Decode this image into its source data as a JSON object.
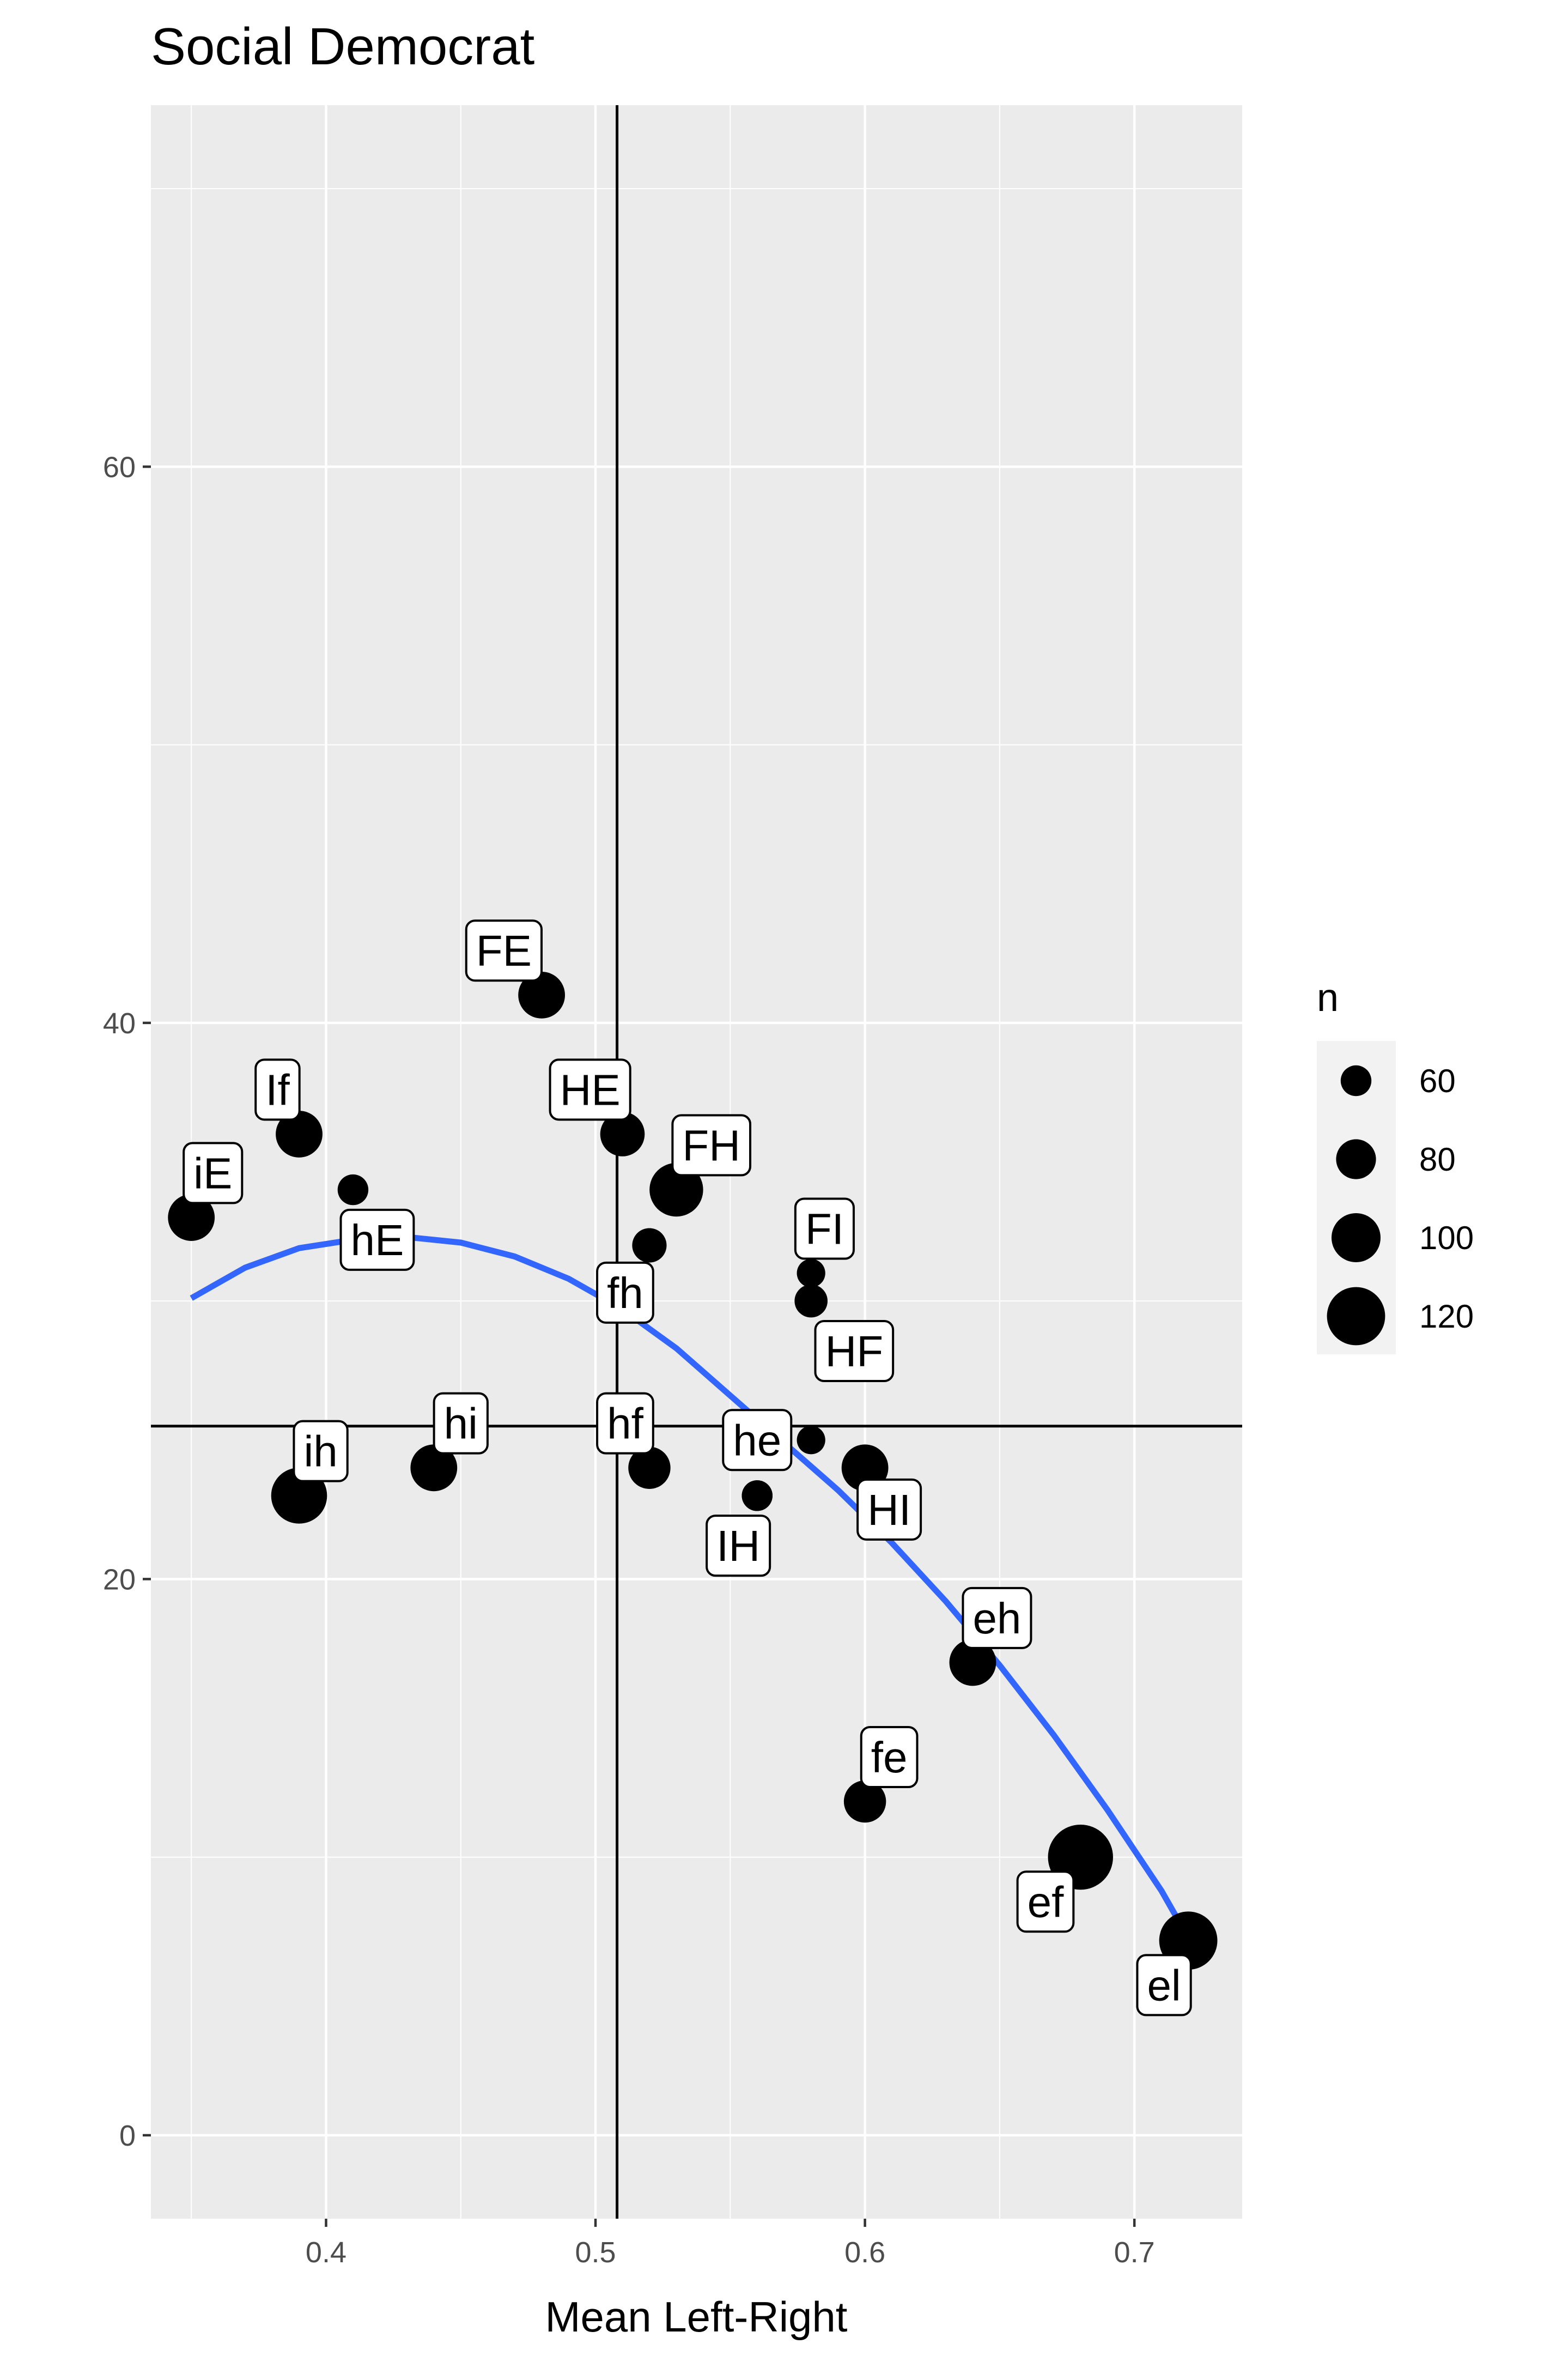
{
  "chart_data": {
    "type": "scatter",
    "title": "Social Democrat",
    "xlabel": "Mean Left-Right",
    "ylabel": "",
    "xlim": [
      0.335,
      0.74
    ],
    "ylim": [
      -3,
      73
    ],
    "x_ticks": [
      0.4,
      0.5,
      0.6,
      0.7
    ],
    "x_tick_labels": [
      "0.4",
      "0.5",
      "0.6",
      "0.7"
    ],
    "y_ticks": [
      0,
      20,
      40,
      60
    ],
    "y_tick_labels": [
      "0",
      "20",
      "40",
      "60"
    ],
    "grid": true,
    "reference_lines": {
      "vline_x": 0.508,
      "hline_y": 25.5
    },
    "points": [
      {
        "label": "FE",
        "x": 0.48,
        "y": 41,
        "n": 95,
        "label_x": 0.466,
        "label_y": 42.6
      },
      {
        "label": "If",
        "x": 0.39,
        "y": 36,
        "n": 95,
        "label_x": 0.382,
        "label_y": 37.6
      },
      {
        "label": "HE",
        "x": 0.51,
        "y": 36,
        "n": 90,
        "label_x": 0.498,
        "label_y": 37.6
      },
      {
        "label": "iE",
        "x": 0.35,
        "y": 33,
        "n": 95,
        "label_x": 0.358,
        "label_y": 34.6
      },
      {
        "label": "hE",
        "x": 0.41,
        "y": 34,
        "n": 60,
        "label_x": 0.419,
        "label_y": 32.2
      },
      {
        "label": "FH",
        "x": 0.53,
        "y": 34,
        "n": 110,
        "label_x": 0.543,
        "label_y": 35.6
      },
      {
        "label": "",
        "x": 0.52,
        "y": 32,
        "n": 68,
        "label_x": null,
        "label_y": null
      },
      {
        "label": "FI",
        "x": 0.58,
        "y": 31,
        "n": 55,
        "label_x": 0.585,
        "label_y": 32.6
      },
      {
        "label": "fh",
        "x": 0.58,
        "y": 30,
        "n": 65,
        "label_x": 0.511,
        "label_y": 30.3
      },
      {
        "label": "HF",
        "x": 0.58,
        "y": 25,
        "n": 55,
        "label_x": 0.596,
        "label_y": 28.2
      },
      {
        "label": "hi",
        "x": 0.44,
        "y": 24,
        "n": 95,
        "label_x": 0.45,
        "label_y": 25.6
      },
      {
        "label": "hf",
        "x": 0.52,
        "y": 24,
        "n": 85,
        "label_x": 0.511,
        "label_y": 25.6
      },
      {
        "label": "he",
        "x": 0.56,
        "y": 23,
        "n": 60,
        "label_x": 0.56,
        "label_y": 25.0
      },
      {
        "label": "HI",
        "x": 0.6,
        "y": 24,
        "n": 95,
        "label_x": 0.609,
        "label_y": 22.5
      },
      {
        "label": "ih",
        "x": 0.39,
        "y": 23,
        "n": 115,
        "label_x": 0.398,
        "label_y": 24.6
      },
      {
        "label": "IH",
        "x": 0.56,
        "y": 23,
        "n": 60,
        "label_x": 0.553,
        "label_y": 21.2
      },
      {
        "label": "eh",
        "x": 0.64,
        "y": 17,
        "n": 95,
        "label_x": 0.649,
        "label_y": 18.6
      },
      {
        "label": "fe",
        "x": 0.6,
        "y": 12,
        "n": 85,
        "label_x": 0.609,
        "label_y": 13.6
      },
      {
        "label": "ef",
        "x": 0.68,
        "y": 10,
        "n": 135,
        "label_x": 0.667,
        "label_y": 8.4
      },
      {
        "label": "el",
        "x": 0.72,
        "y": 7,
        "n": 120,
        "label_x": 0.711,
        "label_y": 5.4
      }
    ],
    "smooth_curve": {
      "color": "#3366ff",
      "x": [
        0.35,
        0.37,
        0.39,
        0.41,
        0.43,
        0.45,
        0.47,
        0.49,
        0.51,
        0.53,
        0.55,
        0.57,
        0.59,
        0.61,
        0.63,
        0.65,
        0.67,
        0.69,
        0.71,
        0.72
      ],
      "y": [
        30.1,
        31.2,
        31.9,
        32.2,
        32.3,
        32.1,
        31.6,
        30.8,
        29.7,
        28.3,
        26.6,
        24.9,
        23.2,
        21.3,
        19.2,
        16.9,
        14.4,
        11.7,
        8.8,
        7.1
      ]
    },
    "legend": {
      "title": "n",
      "position": "right",
      "entries": [
        {
          "label": "60",
          "value": 60
        },
        {
          "label": "80",
          "value": 80
        },
        {
          "label": "100",
          "value": 100
        },
        {
          "label": "120",
          "value": 120
        }
      ]
    },
    "colors": {
      "panel": "#ebebeb",
      "grid": "#ffffff",
      "point": "#000000",
      "reference_line": "#000000",
      "tick_label": "#4d4d4d"
    }
  }
}
